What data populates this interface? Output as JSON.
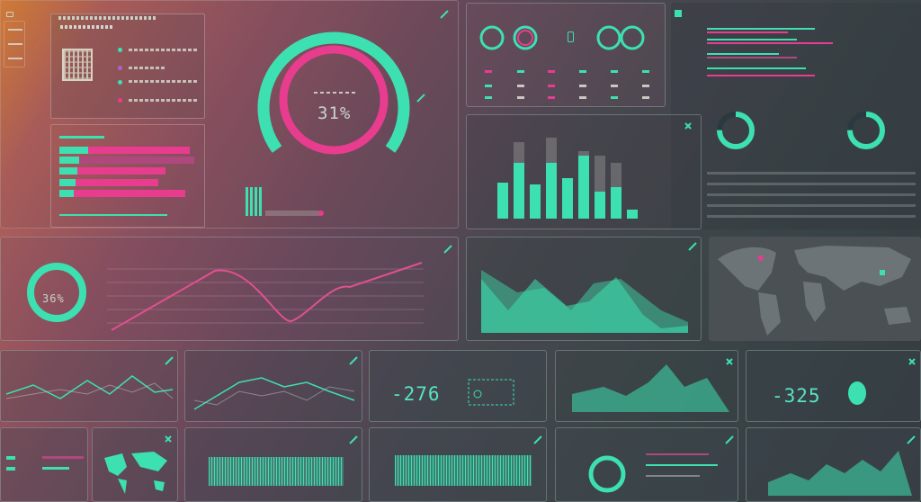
{
  "colors": {
    "accent": "#3de0b0",
    "pink": "#e83c8f",
    "text": "#9fb3ad"
  },
  "icons": {
    "pen": "pen-icon",
    "close": "close-icon",
    "chat": "chat-icon"
  },
  "gauge": {
    "value": "31%"
  },
  "ring_left": {
    "value": "36%"
  },
  "big_numbers": {
    "a": "-276",
    "b": "-325"
  }
}
